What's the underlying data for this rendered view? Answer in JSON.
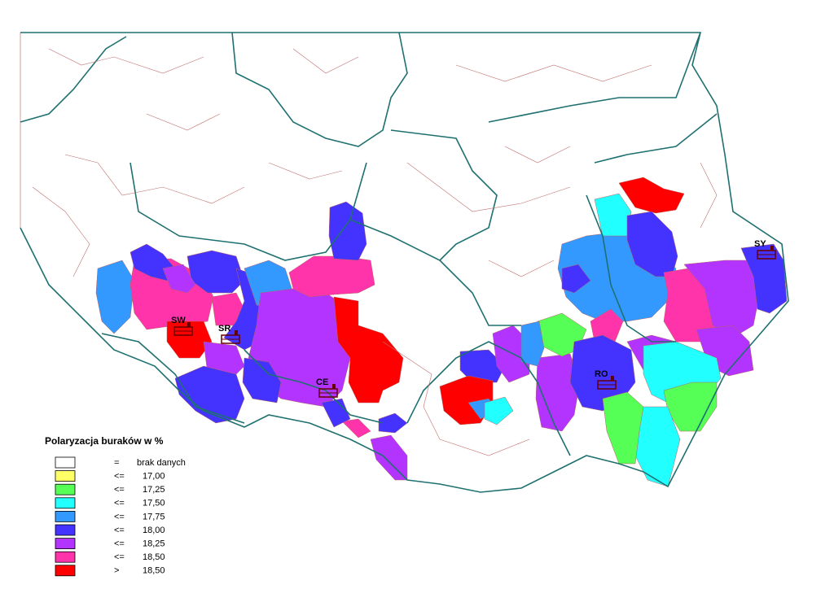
{
  "legend": {
    "title": "Polaryzacja buraków w %",
    "items": [
      {
        "operator": "=",
        "label": "brak danych",
        "color": "#ffffff"
      },
      {
        "operator": "<=",
        "label": "17,00",
        "color": "#ffff66"
      },
      {
        "operator": "<=",
        "label": "17,25",
        "color": "#55ff55"
      },
      {
        "operator": "<=",
        "label": "17,50",
        "color": "#22ffff"
      },
      {
        "operator": "<=",
        "label": "17,75",
        "color": "#3399ff"
      },
      {
        "operator": "<=",
        "label": "18,00",
        "color": "#4433ff"
      },
      {
        "operator": "<=",
        "label": "18,25",
        "color": "#b333ff"
      },
      {
        "operator": "<=",
        "label": "18,50",
        "color": "#ff33aa"
      },
      {
        "operator": ">",
        "label": "18,50",
        "color": "#ff0000"
      }
    ]
  },
  "factories": [
    {
      "label": "SW"
    },
    {
      "label": "SR"
    },
    {
      "label": "CE"
    },
    {
      "label": "RO"
    },
    {
      "label": "SY"
    }
  ]
}
